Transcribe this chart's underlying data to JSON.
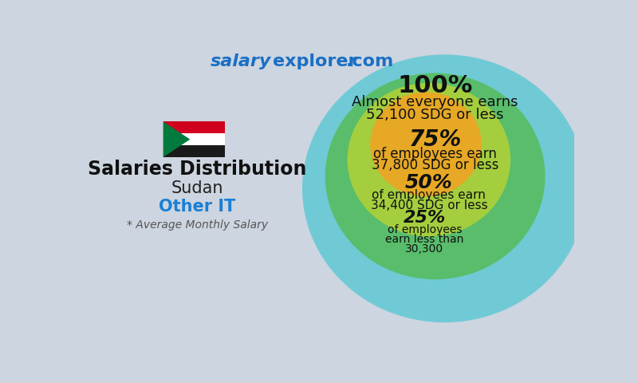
{
  "title_salary": "salary",
  "title_explorer": "explorer",
  "title_com": ".com",
  "title_color": "#1a6fc4",
  "main_title": "Salaries Distribution",
  "country": "Sudan",
  "job": "Other IT",
  "job_color": "#1a7fd4",
  "subtitle": "* Average Monthly Salary",
  "ellipse_colors": [
    "#5bc8d4",
    "#55bb55",
    "#b5d334",
    "#f5a020"
  ],
  "ellipse_alpha": 0.82,
  "bg_color": "#cdd5e0",
  "text_color": "#111111",
  "labels": {
    "p100_pct": "100%",
    "p100_line1": "Almost everyone earns",
    "p100_line2": "52,100 SDG or less",
    "p75_pct": "75%",
    "p75_line1": "of employees earn",
    "p75_line2": "37,800 SDG or less",
    "p50_pct": "50%",
    "p50_line1": "of employees earn",
    "p50_line2": "34,400 SDG or less",
    "p25_pct": "25%",
    "p25_line1": "of employees",
    "p25_line2": "earn less than",
    "p25_line3": "30,300"
  },
  "flag_colors": {
    "red": "#d1001f",
    "white": "#ffffff",
    "black": "#1a1a1a",
    "green": "#007a3d"
  }
}
